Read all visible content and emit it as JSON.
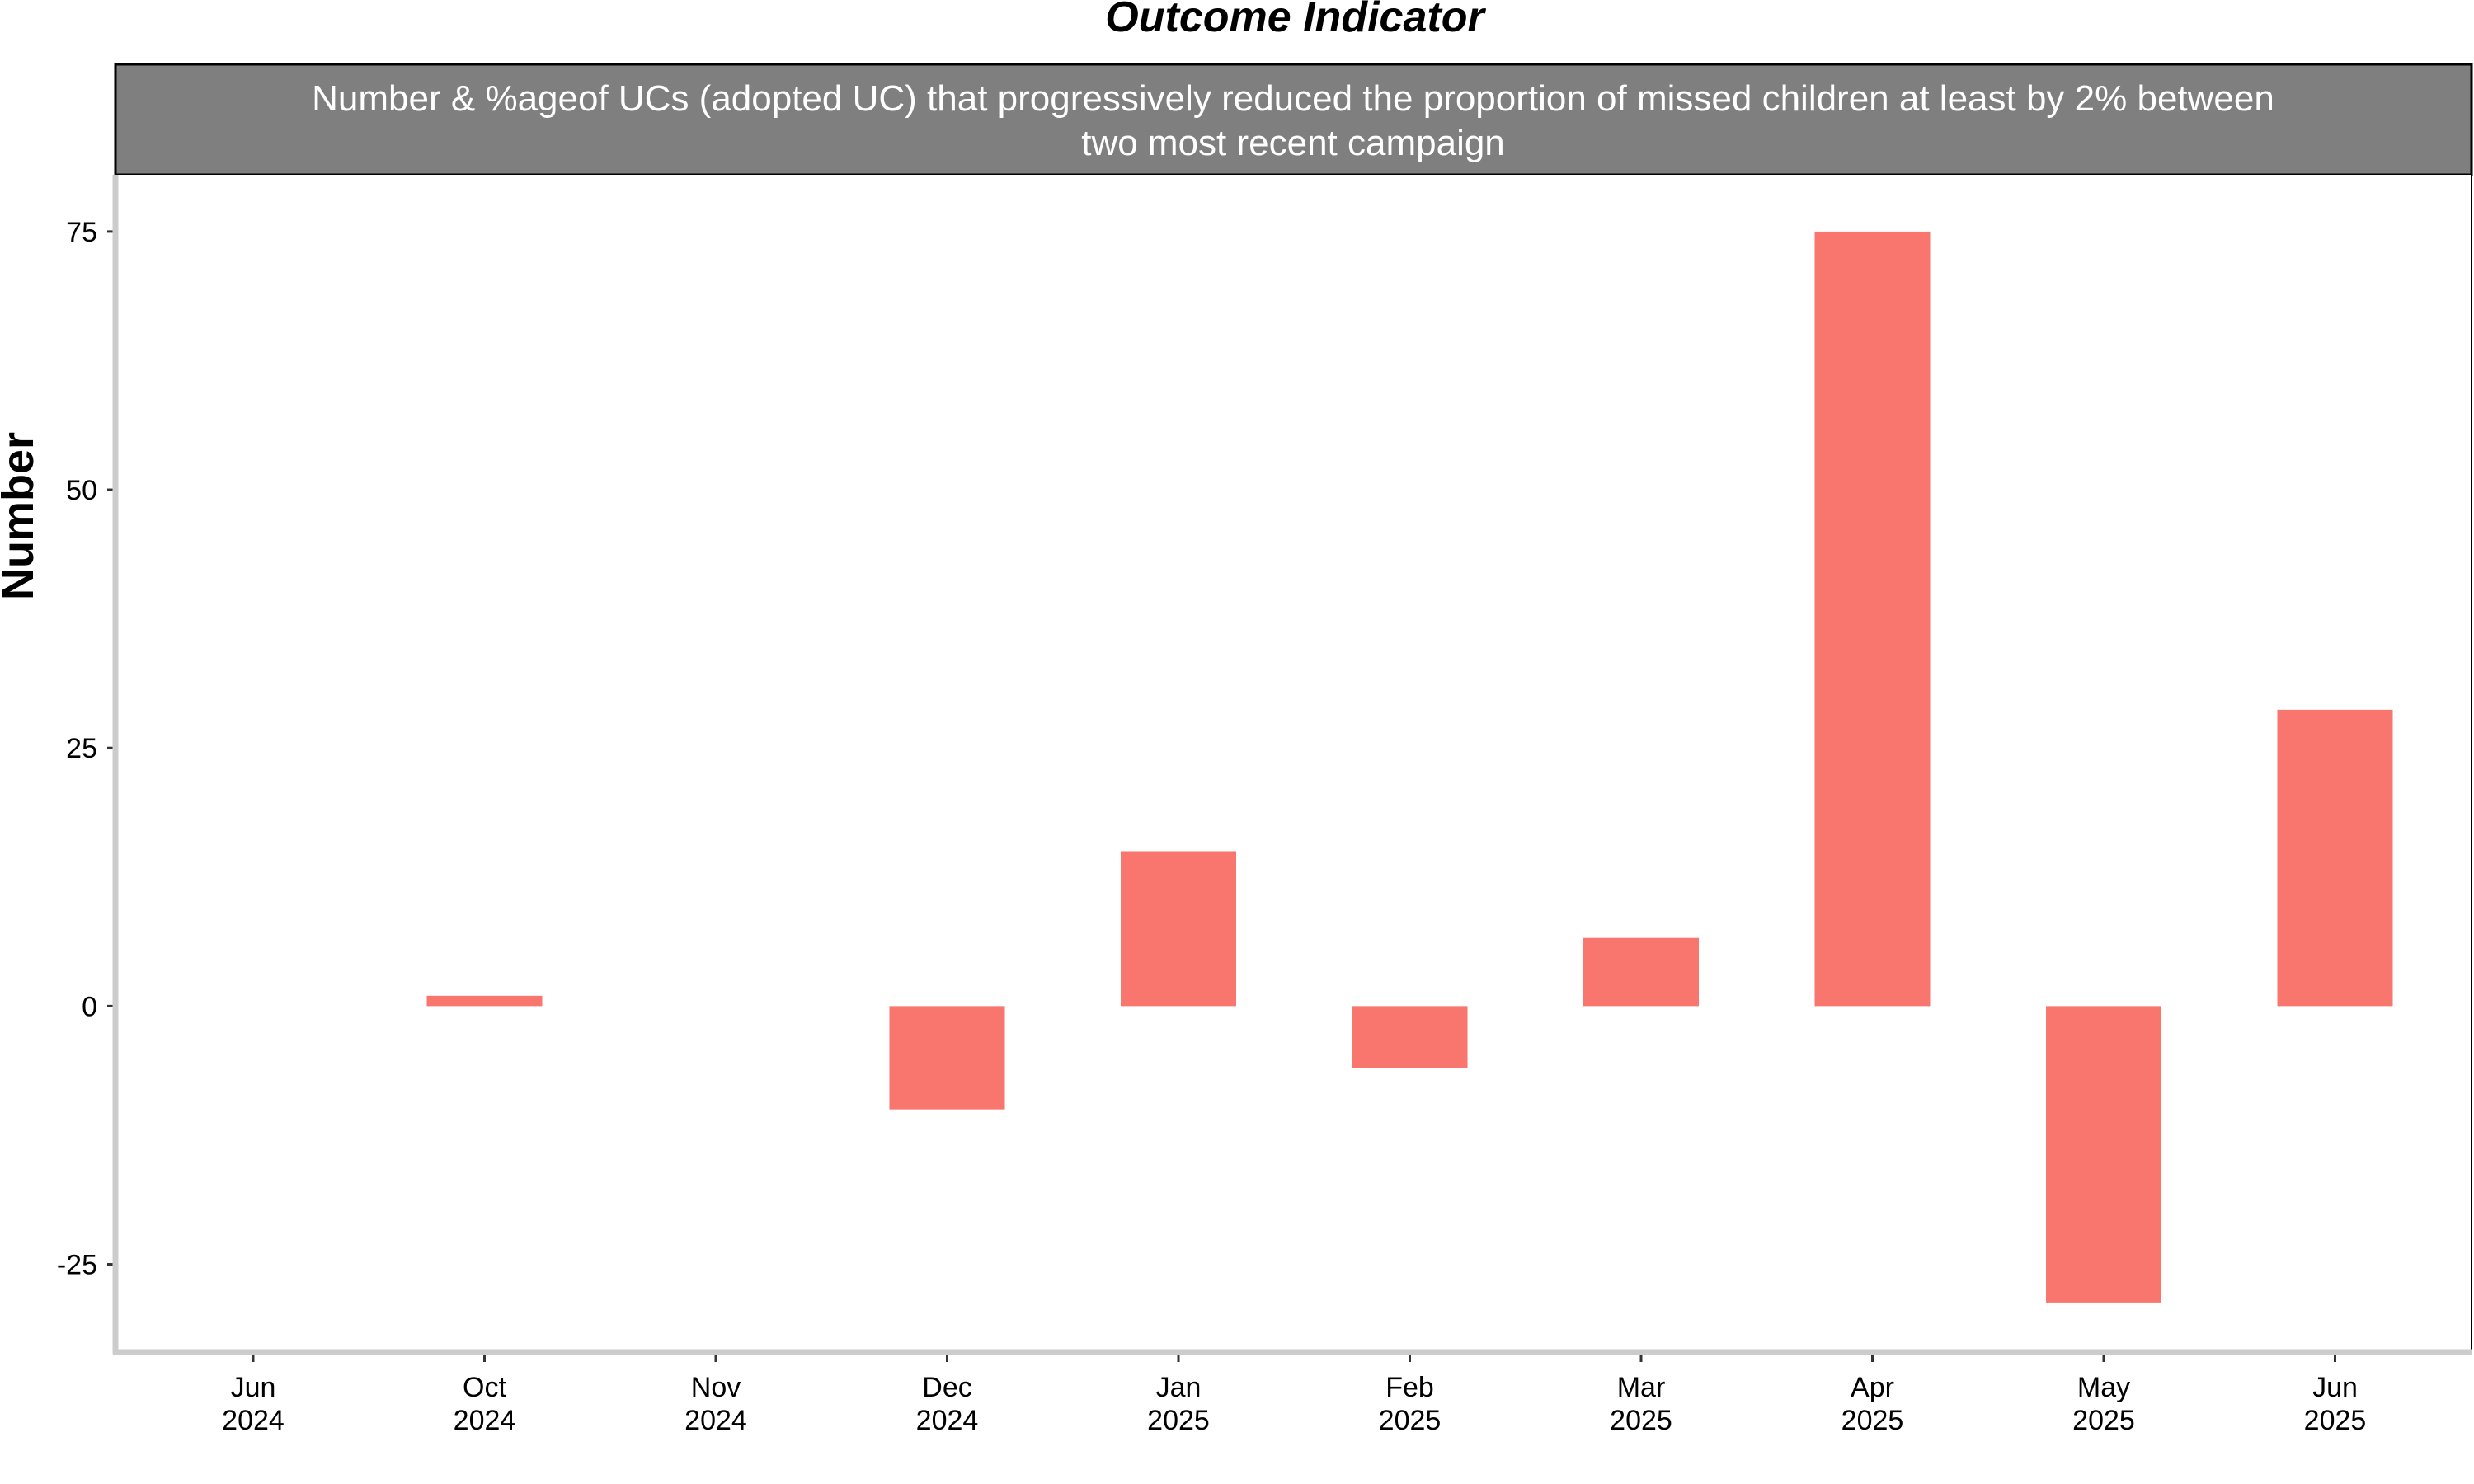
{
  "chart_data": {
    "type": "bar",
    "title": "Outcome Indicator",
    "subtitle_lines": [
      "Number & %ageof UCs (adopted UC) that progressively reduced the proportion of missed children at least by 2% between",
      "two most recent campaign"
    ],
    "ylabel": "Number",
    "xlabel": "",
    "categories": [
      [
        "Jun",
        "2024"
      ],
      [
        "Oct",
        "2024"
      ],
      [
        "Nov",
        "2024"
      ],
      [
        "Dec",
        "2024"
      ],
      [
        "Jan",
        "2025"
      ],
      [
        "Feb",
        "2025"
      ],
      [
        "Mar",
        "2025"
      ],
      [
        "Apr",
        "2025"
      ],
      [
        "May",
        "2025"
      ],
      [
        "Jun",
        "2025"
      ]
    ],
    "values": [
      0,
      1,
      0,
      -10,
      15,
      -6,
      6.6,
      75,
      -28.7,
      28.7
    ],
    "ylim": [
      -33.5,
      80.5
    ],
    "yticks": [
      -25,
      0,
      25,
      50,
      75
    ],
    "ytick_labels": [
      "-25",
      "0",
      "25",
      "50",
      "75"
    ],
    "grid": false,
    "bar_color": "#F8766D",
    "strip_color": "#7F7F7F"
  }
}
